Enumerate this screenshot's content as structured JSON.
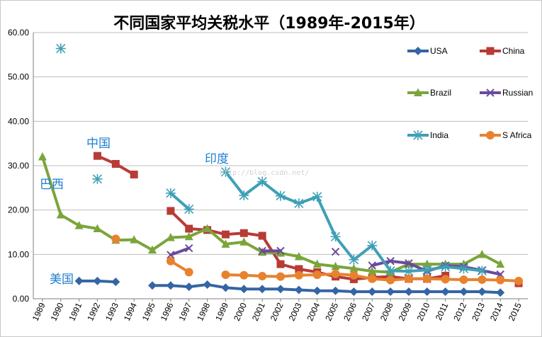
{
  "chart_data": {
    "type": "line",
    "title": "不同国家平均关税水平（1989年-2015年）",
    "xlabel": "",
    "ylabel": "",
    "x": [
      1989,
      1990,
      1991,
      1992,
      1993,
      1994,
      1995,
      1996,
      1997,
      1998,
      1999,
      2000,
      2001,
      2002,
      2003,
      2004,
      2005,
      2006,
      2007,
      2008,
      2009,
      2010,
      2011,
      2012,
      2013,
      2014,
      2015
    ],
    "ylim": [
      0,
      60
    ],
    "yticks": [
      "0.00",
      "10.00",
      "20.00",
      "30.00",
      "40.00",
      "50.00",
      "60.00"
    ],
    "grid": "horizontal",
    "legend_position": "top-right",
    "series": [
      {
        "name": "USA",
        "color": "#3465a4",
        "marker": "diamond",
        "values": [
          null,
          null,
          4.0,
          4.0,
          3.8,
          null,
          3.0,
          3.0,
          2.7,
          3.2,
          2.5,
          2.2,
          2.2,
          2.2,
          2.0,
          1.8,
          1.8,
          1.6,
          1.6,
          1.6,
          1.6,
          1.6,
          1.6,
          1.6,
          1.6,
          1.4,
          null
        ]
      },
      {
        "name": "China",
        "color": "#b83b35",
        "marker": "square",
        "values": [
          null,
          null,
          null,
          32.2,
          30.4,
          28.0,
          null,
          19.8,
          15.8,
          15.5,
          14.5,
          14.8,
          14.2,
          7.8,
          6.7,
          6.0,
          5.0,
          4.4,
          4.8,
          5.0,
          4.5,
          4.5,
          5.2,
          null,
          null,
          null,
          3.5
        ]
      },
      {
        "name": "Brazil",
        "color": "#7aa53a",
        "marker": "triangle",
        "values": [
          32.0,
          18.9,
          16.5,
          15.8,
          13.2,
          13.3,
          11.0,
          13.8,
          14.0,
          15.8,
          12.3,
          12.8,
          10.5,
          10.3,
          9.5,
          7.8,
          7.3,
          6.8,
          6.2,
          6.0,
          7.8,
          7.8,
          7.8,
          7.8,
          10.0,
          7.8,
          null
        ]
      },
      {
        "name": "Russian",
        "color": "#6a4a9c",
        "marker": "cross",
        "values": [
          null,
          null,
          null,
          null,
          null,
          null,
          null,
          9.9,
          11.4,
          null,
          null,
          null,
          10.8,
          10.8,
          null,
          null,
          10.6,
          null,
          7.5,
          8.5,
          8.0,
          6.2,
          7.5,
          7.2,
          6.4,
          5.5,
          null
        ]
      },
      {
        "name": "India",
        "color": "#3ea0b6",
        "marker": "star",
        "values": [
          null,
          56.4,
          null,
          27.0,
          null,
          null,
          null,
          23.8,
          20.2,
          null,
          28.6,
          23.3,
          26.4,
          23.2,
          21.5,
          23.0,
          14.0,
          8.8,
          12.0,
          6.3,
          6.2,
          6.5,
          7.2,
          6.8,
          6.3,
          null,
          null
        ]
      },
      {
        "name": "S Africa",
        "color": "#e8822e",
        "marker": "circle",
        "values": [
          null,
          null,
          null,
          null,
          13.5,
          null,
          null,
          8.5,
          6.0,
          null,
          5.4,
          5.3,
          5.1,
          5.0,
          5.3,
          5.4,
          5.6,
          5.3,
          4.5,
          4.2,
          4.5,
          4.5,
          4.4,
          4.3,
          4.3,
          4.2,
          4.0
        ]
      }
    ],
    "annotations": [
      {
        "text": "中国",
        "series": "China"
      },
      {
        "text": "巴西",
        "series": "Brazil"
      },
      {
        "text": "印度",
        "series": "India"
      },
      {
        "text": "美国",
        "series": "USA"
      }
    ],
    "watermark": "http://blog.csdn.net/"
  }
}
